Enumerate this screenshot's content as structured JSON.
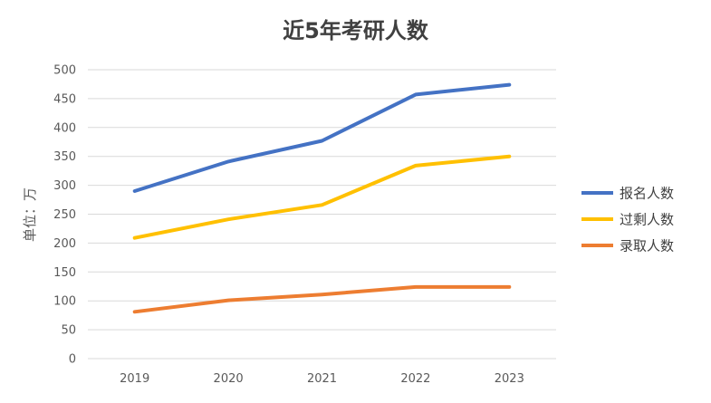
{
  "chart_data": {
    "type": "line",
    "title": "近5年考研人数",
    "xlabel": "",
    "ylabel": "单位：万",
    "categories": [
      "2019",
      "2020",
      "2021",
      "2022",
      "2023"
    ],
    "ylim": [
      0,
      500
    ],
    "yticks": [
      0,
      50,
      100,
      150,
      200,
      250,
      300,
      350,
      400,
      450,
      500
    ],
    "grid": true,
    "legend_position": "right",
    "series": [
      {
        "name": "报名人数",
        "color": "#4472C4",
        "values": [
          290,
          341,
          377,
          457,
          474
        ]
      },
      {
        "name": "过剩人数",
        "color": "#FFC000",
        "values": [
          209,
          241,
          266,
          334,
          350
        ]
      },
      {
        "name": "录取人数",
        "color": "#ED7D31",
        "values": [
          81,
          101,
          111,
          124,
          124
        ]
      }
    ]
  }
}
